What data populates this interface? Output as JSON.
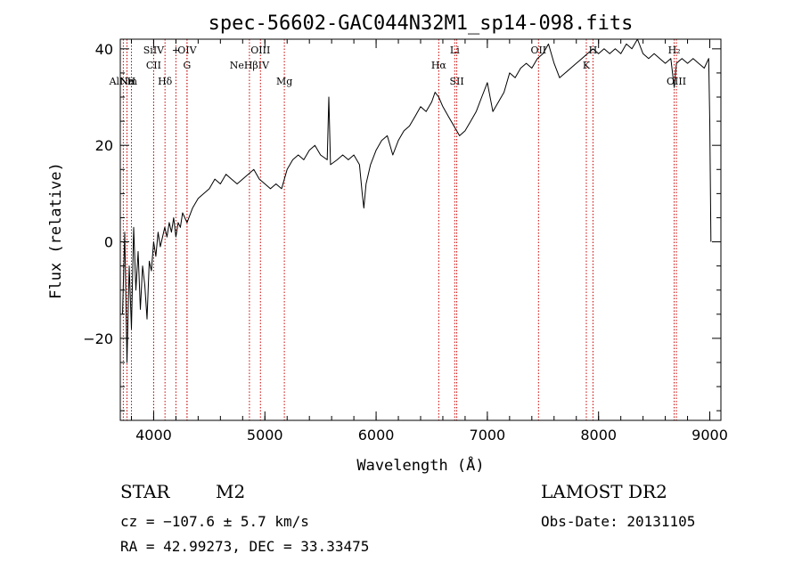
{
  "chart_data": {
    "type": "line",
    "title": "spec-56602-GAC044N32M1_sp14-098.fits",
    "xlabel": "Wavelength (Å)",
    "ylabel": "Flux (relative)",
    "xlim": [
      3700,
      9100
    ],
    "ylim": [
      -37,
      42
    ],
    "x_ticks": [
      4000,
      5000,
      6000,
      7000,
      8000,
      9000
    ],
    "y_ticks": [
      -20,
      0,
      20,
      40
    ],
    "x_tick_labels": [
      "4000",
      "5000",
      "6000",
      "7000",
      "8000",
      "9000"
    ],
    "y_tick_labels": [
      "−20",
      "0",
      "20",
      "40"
    ],
    "grid": false,
    "series": [
      {
        "color": "#000000",
        "points": [
          [
            3720,
            -15
          ],
          [
            3740,
            2
          ],
          [
            3760,
            -25
          ],
          [
            3780,
            -5
          ],
          [
            3800,
            -18
          ],
          [
            3820,
            3
          ],
          [
            3840,
            -10
          ],
          [
            3860,
            -2
          ],
          [
            3880,
            -14
          ],
          [
            3900,
            -5
          ],
          [
            3920,
            -9
          ],
          [
            3940,
            -16
          ],
          [
            3960,
            -4
          ],
          [
            3980,
            -6
          ],
          [
            4000,
            0
          ],
          [
            4020,
            -3
          ],
          [
            4040,
            2
          ],
          [
            4060,
            -1
          ],
          [
            4080,
            1
          ],
          [
            4100,
            3
          ],
          [
            4120,
            1
          ],
          [
            4140,
            4
          ],
          [
            4160,
            2
          ],
          [
            4180,
            5
          ],
          [
            4200,
            1
          ],
          [
            4220,
            4
          ],
          [
            4240,
            3
          ],
          [
            4260,
            6
          ],
          [
            4280,
            5
          ],
          [
            4300,
            4
          ],
          [
            4350,
            7
          ],
          [
            4400,
            9
          ],
          [
            4450,
            10
          ],
          [
            4500,
            11
          ],
          [
            4550,
            13
          ],
          [
            4600,
            12
          ],
          [
            4650,
            14
          ],
          [
            4700,
            13
          ],
          [
            4750,
            12
          ],
          [
            4800,
            13
          ],
          [
            4850,
            14
          ],
          [
            4900,
            15
          ],
          [
            4950,
            13
          ],
          [
            5000,
            12
          ],
          [
            5050,
            11
          ],
          [
            5100,
            12
          ],
          [
            5150,
            11
          ],
          [
            5200,
            15
          ],
          [
            5250,
            17
          ],
          [
            5300,
            18
          ],
          [
            5350,
            17
          ],
          [
            5400,
            19
          ],
          [
            5450,
            20
          ],
          [
            5500,
            18
          ],
          [
            5560,
            17
          ],
          [
            5575,
            30
          ],
          [
            5590,
            16
          ],
          [
            5650,
            17
          ],
          [
            5700,
            18
          ],
          [
            5750,
            17
          ],
          [
            5800,
            18
          ],
          [
            5850,
            16
          ],
          [
            5875,
            10
          ],
          [
            5890,
            7
          ],
          [
            5910,
            12
          ],
          [
            5950,
            16
          ],
          [
            6000,
            19
          ],
          [
            6050,
            21
          ],
          [
            6100,
            22
          ],
          [
            6150,
            18
          ],
          [
            6200,
            21
          ],
          [
            6250,
            23
          ],
          [
            6300,
            24
          ],
          [
            6350,
            26
          ],
          [
            6400,
            28
          ],
          [
            6450,
            27
          ],
          [
            6500,
            29
          ],
          [
            6530,
            31
          ],
          [
            6563,
            30
          ],
          [
            6600,
            28
          ],
          [
            6650,
            26
          ],
          [
            6700,
            24
          ],
          [
            6750,
            22
          ],
          [
            6800,
            23
          ],
          [
            6850,
            25
          ],
          [
            6900,
            27
          ],
          [
            6950,
            30
          ],
          [
            7000,
            33
          ],
          [
            7050,
            27
          ],
          [
            7100,
            29
          ],
          [
            7150,
            31
          ],
          [
            7200,
            35
          ],
          [
            7250,
            34
          ],
          [
            7300,
            36
          ],
          [
            7350,
            37
          ],
          [
            7400,
            36
          ],
          [
            7450,
            38
          ],
          [
            7500,
            39
          ],
          [
            7550,
            41
          ],
          [
            7600,
            37
          ],
          [
            7650,
            34
          ],
          [
            7700,
            35
          ],
          [
            7750,
            36
          ],
          [
            7800,
            37
          ],
          [
            7850,
            38
          ],
          [
            7900,
            39
          ],
          [
            7950,
            40
          ],
          [
            8000,
            39
          ],
          [
            8050,
            40
          ],
          [
            8100,
            39
          ],
          [
            8150,
            40
          ],
          [
            8200,
            39
          ],
          [
            8250,
            41
          ],
          [
            8300,
            40
          ],
          [
            8350,
            42
          ],
          [
            8400,
            39
          ],
          [
            8450,
            38
          ],
          [
            8500,
            39
          ],
          [
            8550,
            38
          ],
          [
            8600,
            37
          ],
          [
            8650,
            38
          ],
          [
            8680,
            32
          ],
          [
            8700,
            37
          ],
          [
            8750,
            38
          ],
          [
            8800,
            37
          ],
          [
            8850,
            38
          ],
          [
            8900,
            37
          ],
          [
            8950,
            36
          ],
          [
            8990,
            38
          ],
          [
            9000,
            25
          ],
          [
            9010,
            0
          ]
        ]
      }
    ],
    "spectral_lines": [
      {
        "x": 3727,
        "label": "AlNm",
        "row": 3
      },
      {
        "x": 3760,
        "label": "Ne",
        "row": 3
      },
      {
        "x": 3800,
        "label": "H",
        "row": 3
      },
      {
        "x": 4000,
        "label": "SiIV",
        "row": 1
      },
      {
        "x": 4000,
        "label": "CII",
        "row": 2
      },
      {
        "x": 4102,
        "label": "Hδ",
        "row": 3
      },
      {
        "x": 4200,
        "label": "+",
        "row": 1
      },
      {
        "x": 4300,
        "label": "OIV",
        "row": 1
      },
      {
        "x": 4300,
        "label": "G",
        "row": 2
      },
      {
        "x": 4861,
        "label": "NeHβIV",
        "row": 2
      },
      {
        "x": 4960,
        "label": "OIII",
        "row": 1
      },
      {
        "x": 5175,
        "label": "Mg",
        "row": 3
      },
      {
        "x": 6563,
        "label": "Hα",
        "row": 2
      },
      {
        "x": 6707,
        "label": "Li",
        "row": 1
      },
      {
        "x": 6725,
        "label": "SII",
        "row": 3
      },
      {
        "x": 7460,
        "label": "OII",
        "row": 1
      },
      {
        "x": 7890,
        "label": "K",
        "row": 2
      },
      {
        "x": 7950,
        "label": "H",
        "row": 1
      },
      {
        "x": 8680,
        "label": "H₂",
        "row": 1
      },
      {
        "x": 8700,
        "label": "OIII",
        "row": 3
      }
    ]
  },
  "info": {
    "object_class": "STAR",
    "subclass": "M2",
    "cz": "cz = −107.6 ± 5.7 km/s",
    "radec": "RA =  42.99273, DEC =  33.33475",
    "survey": "LAMOST DR2",
    "obs_date": "Obs-Date: 20131105"
  }
}
